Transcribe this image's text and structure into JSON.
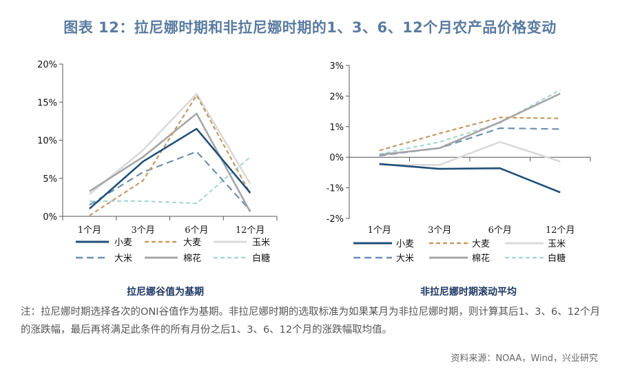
{
  "title": "图表 12：拉尼娜时期和非拉尼娜时期的1、3、6、12个月农产品价格变动",
  "colors": {
    "title": "#5a7ba0",
    "subtitle": "#1f3864",
    "wheat": "#1f4e79",
    "barley": "#c69a62",
    "corn": "#d9d9d9",
    "rice": "#6c8fb0",
    "cotton": "#a5a5a5",
    "sugar": "#a9d7d5"
  },
  "chart_data": [
    {
      "type": "line",
      "title": "拉尼娜谷值为基期",
      "categories": [
        "1个月",
        "3个月",
        "6个月",
        "12个月"
      ],
      "ylim": [
        0,
        20
      ],
      "yticks": [
        0,
        5,
        10,
        15,
        20
      ],
      "ytick_labels": [
        "0%",
        "5%",
        "10%",
        "15%",
        "20%"
      ],
      "series": [
        {
          "name": "小麦",
          "values": [
            1.0,
            7.2,
            11.5,
            3.1
          ]
        },
        {
          "name": "大麦",
          "values": [
            0.1,
            4.7,
            15.9,
            3.0
          ]
        },
        {
          "name": "玉米",
          "values": [
            2.9,
            8.7,
            16.1,
            4.3
          ]
        },
        {
          "name": "大米",
          "values": [
            1.5,
            5.8,
            8.5,
            0.8
          ]
        },
        {
          "name": "棉花",
          "values": [
            3.3,
            7.8,
            13.5,
            0.6
          ]
        },
        {
          "name": "白糖",
          "values": [
            2.0,
            2.0,
            1.7,
            7.8
          ]
        }
      ]
    },
    {
      "type": "line",
      "title": "非拉尼娜时期滚动平均",
      "categories": [
        "1个月",
        "3个月",
        "6个月",
        "12个月"
      ],
      "ylim": [
        -2,
        3
      ],
      "yticks": [
        -2,
        -1,
        0,
        1,
        2,
        3
      ],
      "ytick_labels": [
        "-2%",
        "-1%",
        "0%",
        "1%",
        "2%",
        "3%"
      ],
      "series": [
        {
          "name": "小麦",
          "values": [
            -0.22,
            -0.38,
            -0.36,
            -1.15
          ]
        },
        {
          "name": "大麦",
          "values": [
            0.22,
            0.78,
            1.3,
            1.27
          ]
        },
        {
          "name": "玉米",
          "values": [
            -0.25,
            -0.25,
            0.5,
            -0.14
          ]
        },
        {
          "name": "大米",
          "values": [
            0.05,
            0.3,
            0.95,
            0.92
          ]
        },
        {
          "name": "棉花",
          "values": [
            0.08,
            0.3,
            1.15,
            2.08
          ]
        },
        {
          "name": "白糖",
          "values": [
            0.1,
            0.5,
            1.12,
            2.2
          ]
        }
      ]
    }
  ],
  "note": "注：拉尼娜时期选择各次的ONI谷值作为基期。非拉尼娜时期的选取标准为如果某月为非拉尼娜时期，则计算其后1、3、6、12个月的涨跌幅，最后再将满足此条件的所有月份之后1、3、6、12个月的涨跌幅取均值。",
  "source": "资料来源：NOAA，Wind，兴业研究"
}
